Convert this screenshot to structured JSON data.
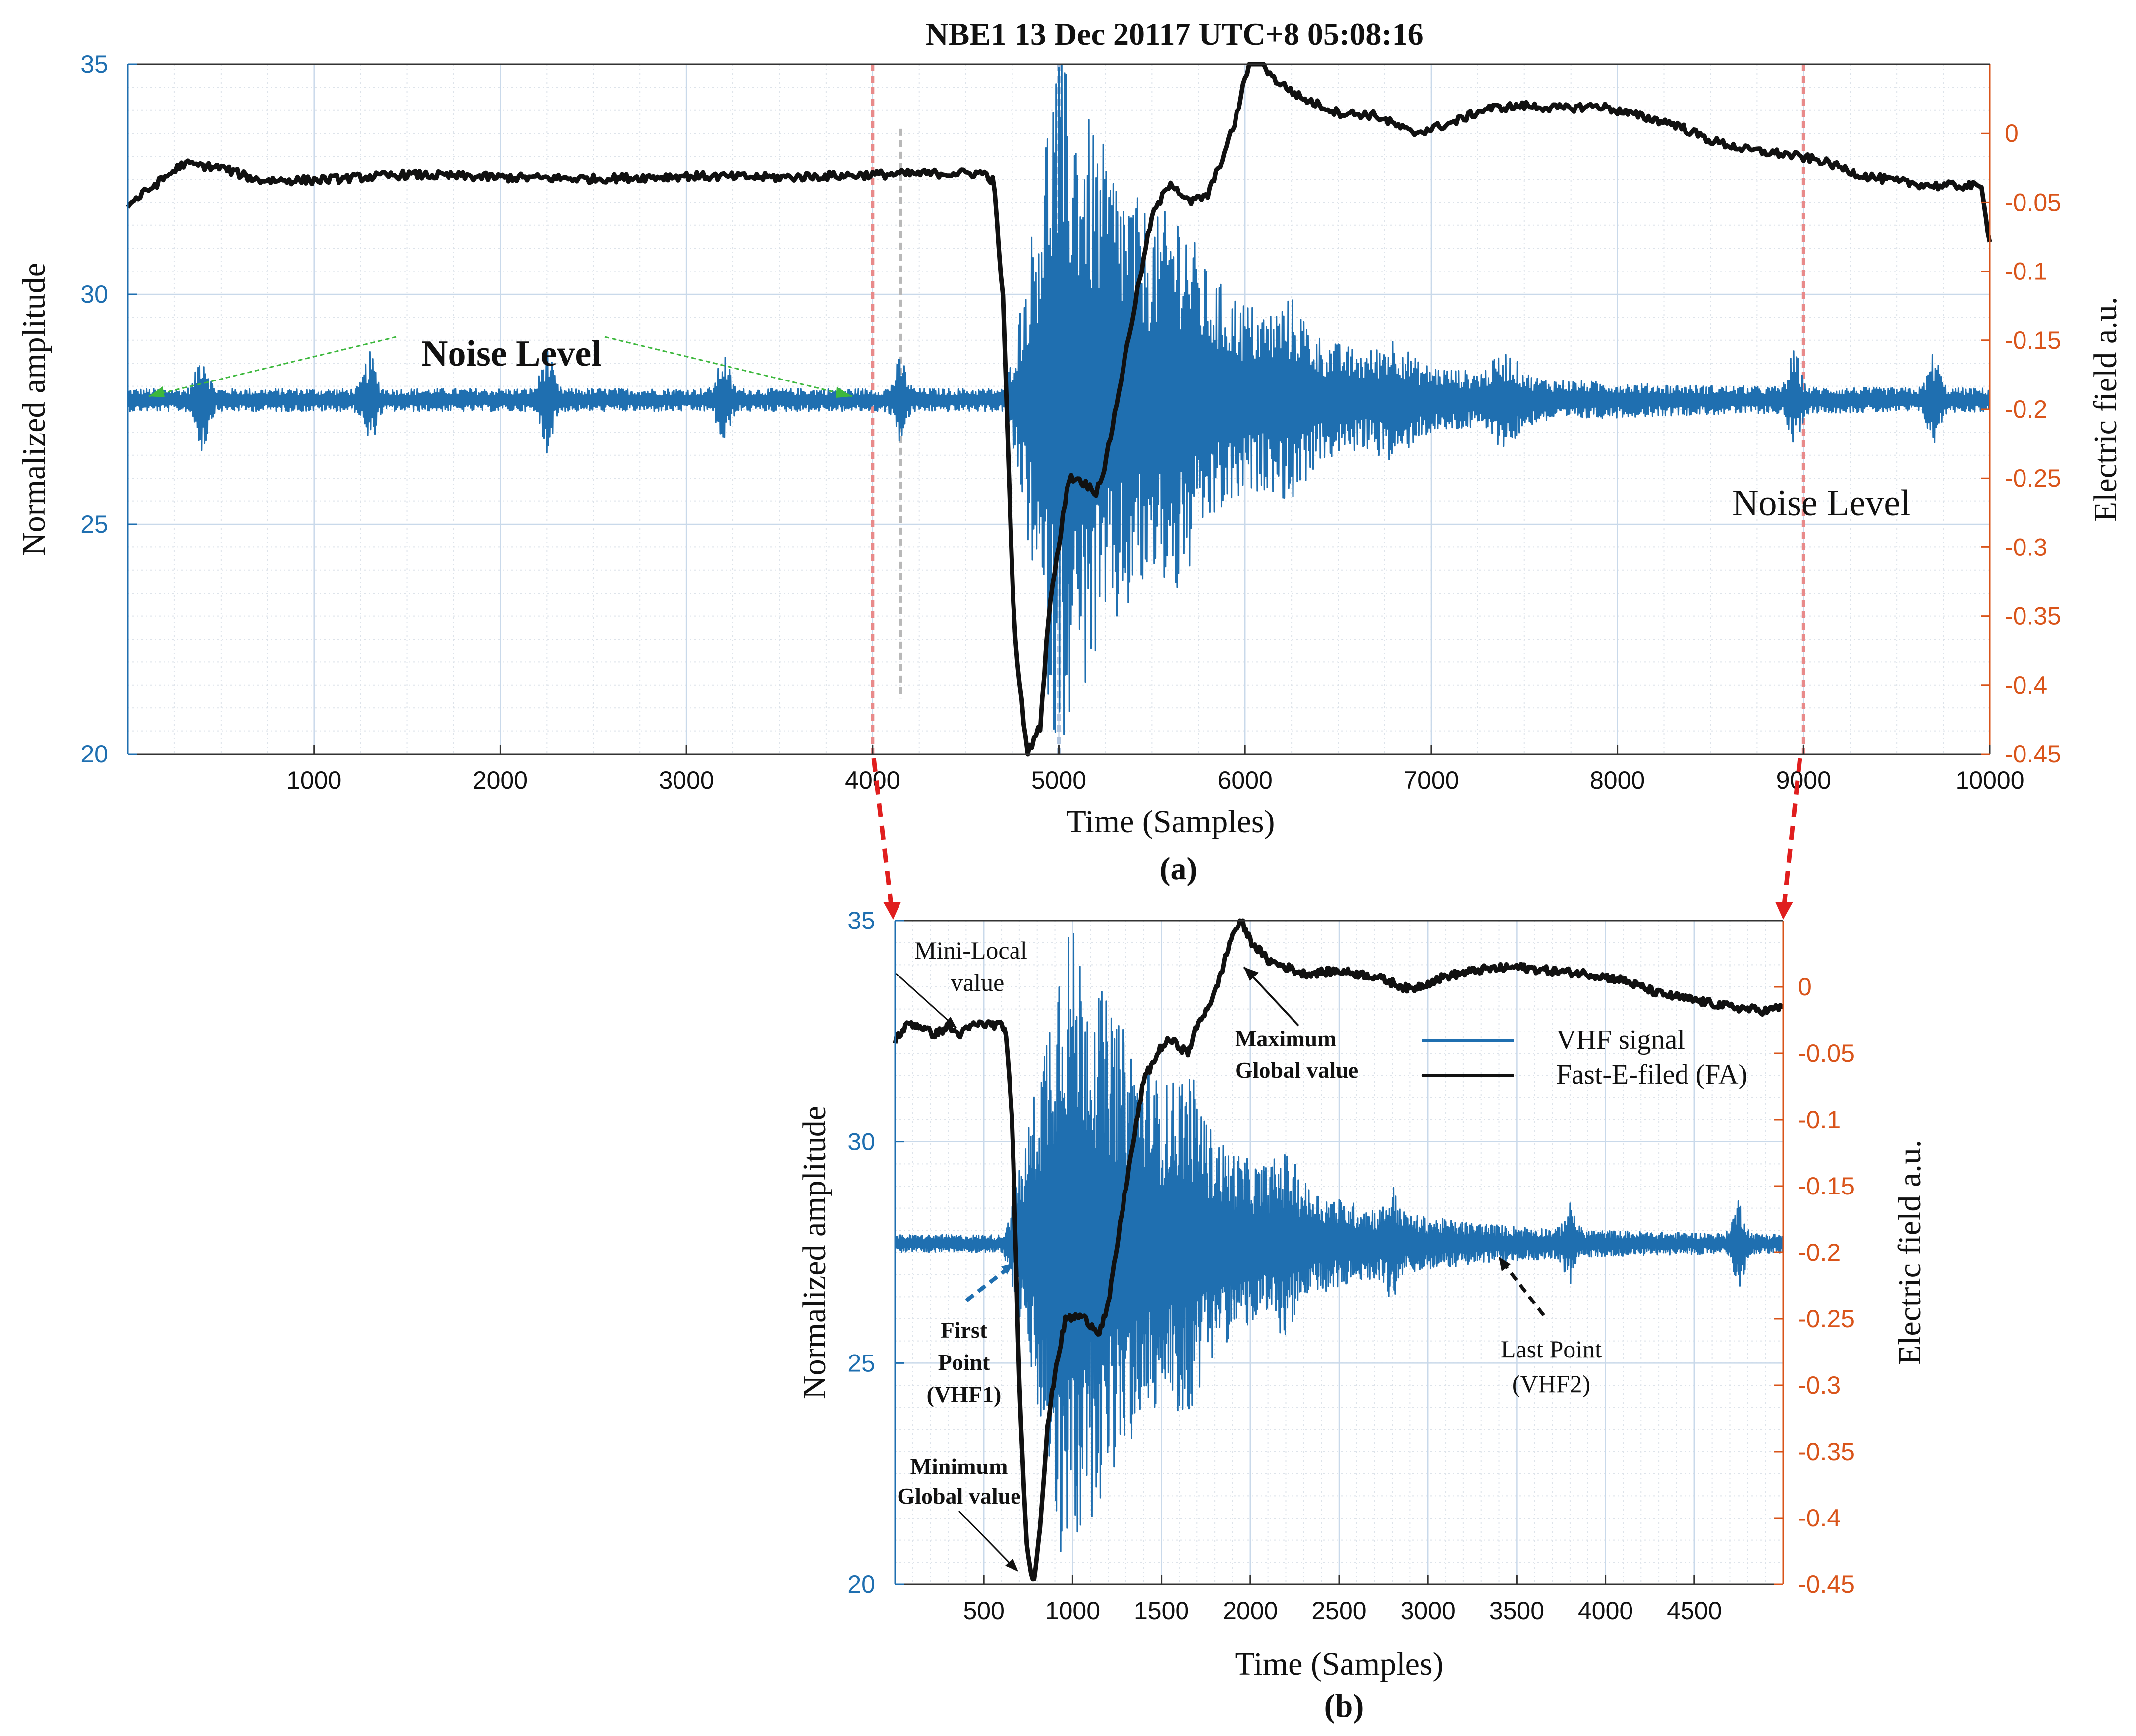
{
  "figure": {
    "title": "NBE1 13 Dec 20117  UTC+8 05:08:16"
  },
  "chart_data": [
    {
      "panel": "(a)",
      "type": "line",
      "title": "NBE1 13 Dec 20117  UTC+8 05:08:16",
      "xlabel": "Time (Samples)",
      "ylabel_left": "Normalized  amplitude",
      "ylabel_right": "Electric  field a.u.",
      "xlim": [
        0,
        10000
      ],
      "ylim_left": [
        20,
        35
      ],
      "ylim_right": [
        -0.45,
        0.05
      ],
      "xticks": [
        "1000",
        "2000",
        "3000",
        "4000",
        "5000",
        "6000",
        "7000",
        "8000",
        "9000",
        "10000"
      ],
      "yticks_left": [
        "35",
        "30",
        "25",
        "20"
      ],
      "yticks_right": [
        "0",
        "-0.05",
        "-0.1",
        "-0.15",
        "-0.2",
        "-0.25",
        "-0.3",
        "-0.35",
        "-0.4",
        "-0.45"
      ],
      "series": [
        {
          "name": "VHF signal",
          "color": "#1f6fb0",
          "axis": "left",
          "baseline": 27.7,
          "noise_amp": 0.25,
          "bursts": [
            [
              400,
              0.9
            ],
            [
              1300,
              0.8
            ],
            [
              2250,
              0.9
            ],
            [
              3200,
              0.8
            ],
            [
              4150,
              0.7
            ],
            [
              8950,
              0.8
            ],
            [
              9700,
              0.8
            ]
          ],
          "main_onset": 4700,
          "main_peak": 4980,
          "main_peak_amp": 7.5,
          "main_decay": 750,
          "late_bursts": [
            [
              5650,
              1.0
            ],
            [
              6250,
              0.6
            ],
            [
              6800,
              0.5
            ],
            [
              7400,
              0.5
            ]
          ]
        },
        {
          "name": "Fast-E-filed (FA)",
          "color": "#111111",
          "axis": "right",
          "points": [
            [
              0,
              -0.052
            ],
            [
              300,
              -0.022
            ],
            [
              500,
              -0.025
            ],
            [
              700,
              -0.034
            ],
            [
              1000,
              -0.034
            ],
            [
              1500,
              -0.03
            ],
            [
              2000,
              -0.032
            ],
            [
              2500,
              -0.033
            ],
            [
              3000,
              -0.031
            ],
            [
              3500,
              -0.032
            ],
            [
              4000,
              -0.03
            ],
            [
              4400,
              -0.029
            ],
            [
              4600,
              -0.029
            ],
            [
              4650,
              -0.035
            ],
            [
              4700,
              -0.12
            ],
            [
              4760,
              -0.36
            ],
            [
              4830,
              -0.45
            ],
            [
              4900,
              -0.43
            ],
            [
              4950,
              -0.34
            ],
            [
              5000,
              -0.3
            ],
            [
              5050,
              -0.25
            ],
            [
              5100,
              -0.25
            ],
            [
              5150,
              -0.255
            ],
            [
              5200,
              -0.26
            ],
            [
              5250,
              -0.24
            ],
            [
              5400,
              -0.13
            ],
            [
              5500,
              -0.06
            ],
            [
              5600,
              -0.035
            ],
            [
              5700,
              -0.05
            ],
            [
              5800,
              -0.045
            ],
            [
              5900,
              -0.01
            ],
            [
              5950,
              0.01
            ],
            [
              6000,
              0.04
            ],
            [
              6050,
              0.06
            ],
            [
              6150,
              0.04
            ],
            [
              6300,
              0.026
            ],
            [
              6500,
              0.015
            ],
            [
              6700,
              0.013
            ],
            [
              6900,
              0.0
            ],
            [
              7100,
              0.007
            ],
            [
              7300,
              0.018
            ],
            [
              7500,
              0.02
            ],
            [
              7700,
              0.018
            ],
            [
              7900,
              0.02
            ],
            [
              8100,
              0.013
            ],
            [
              8300,
              0.007
            ],
            [
              8500,
              -0.005
            ],
            [
              8700,
              -0.012
            ],
            [
              8900,
              -0.015
            ],
            [
              9100,
              -0.02
            ],
            [
              9300,
              -0.03
            ],
            [
              9500,
              -0.035
            ],
            [
              9700,
              -0.038
            ],
            [
              9900,
              -0.038
            ],
            [
              9960,
              -0.04
            ],
            [
              10000,
              -0.08
            ]
          ]
        }
      ],
      "vertical_markers": [
        {
          "x": 4000,
          "color": "#e88a8a"
        },
        {
          "x": 4150,
          "color": "#b8b8b8"
        },
        {
          "x": 5000,
          "color": "#b0c4de"
        },
        {
          "x": 9000,
          "color": "#e88a8a"
        }
      ],
      "annotations": [
        {
          "text": "Noise Level",
          "bold": true
        },
        {
          "text": "Noise Level",
          "bold": false
        }
      ]
    },
    {
      "panel": "(b)",
      "type": "line",
      "xlabel": "Time (Samples)",
      "ylabel_left": "Normalized  amplitude",
      "ylabel_right": "Electric  field a.u.",
      "xlim": [
        0,
        5000
      ],
      "ylim_left": [
        20,
        35
      ],
      "ylim_right": [
        -0.45,
        0.05
      ],
      "xticks": [
        "500",
        "1000",
        "1500",
        "2000",
        "2500",
        "3000",
        "3500",
        "4000",
        "4500"
      ],
      "yticks_left": [
        "35",
        "30",
        "25",
        "20"
      ],
      "yticks_right": [
        "0",
        "-0.05",
        "-0.1",
        "-0.15",
        "-0.2",
        "-0.25",
        "-0.3",
        "-0.35",
        "-0.4",
        "-0.45"
      ],
      "legend": [
        {
          "label": "VHF signal",
          "color": "#1f6fb0"
        },
        {
          "label": "Fast-E-filed (FA)",
          "color": "#111111"
        }
      ],
      "series": [
        {
          "name": "VHF signal",
          "color": "#1f6fb0",
          "axis": "left",
          "baseline": 27.7,
          "noise_amp": 0.2,
          "bursts": [
            [
              2800,
              0.6
            ],
            [
              3800,
              0.6
            ],
            [
              4750,
              0.8
            ]
          ],
          "main_onset": 600,
          "main_peak": 950,
          "main_peak_amp": 7.5,
          "main_decay": 700,
          "late_bursts": [
            [
              1650,
              1.0
            ],
            [
              2200,
              0.6
            ]
          ]
        },
        {
          "name": "Fast-E-filed (FA)",
          "color": "#111111",
          "axis": "right",
          "points": [
            [
              0,
              -0.04
            ],
            [
              80,
              -0.027
            ],
            [
              150,
              -0.03
            ],
            [
              220,
              -0.036
            ],
            [
              300,
              -0.03
            ],
            [
              360,
              -0.036
            ],
            [
              450,
              -0.028
            ],
            [
              550,
              -0.028
            ],
            [
              620,
              -0.03
            ],
            [
              660,
              -0.1
            ],
            [
              700,
              -0.3
            ],
            [
              740,
              -0.42
            ],
            [
              780,
              -0.45
            ],
            [
              820,
              -0.4
            ],
            [
              860,
              -0.33
            ],
            [
              900,
              -0.29
            ],
            [
              960,
              -0.25
            ],
            [
              1050,
              -0.248
            ],
            [
              1150,
              -0.26
            ],
            [
              1200,
              -0.24
            ],
            [
              1300,
              -0.15
            ],
            [
              1400,
              -0.07
            ],
            [
              1500,
              -0.045
            ],
            [
              1550,
              -0.04
            ],
            [
              1600,
              -0.045
            ],
            [
              1650,
              -0.05
            ],
            [
              1700,
              -0.03
            ],
            [
              1800,
              -0.005
            ],
            [
              1900,
              0.04
            ],
            [
              1950,
              0.05
            ],
            [
              2000,
              0.035
            ],
            [
              2100,
              0.02
            ],
            [
              2300,
              0.01
            ],
            [
              2500,
              0.012
            ],
            [
              2700,
              0.008
            ],
            [
              2900,
              -0.002
            ],
            [
              3100,
              0.008
            ],
            [
              3300,
              0.013
            ],
            [
              3500,
              0.015
            ],
            [
              3700,
              0.012
            ],
            [
              3900,
              0.01
            ],
            [
              4100,
              0.005
            ],
            [
              4300,
              -0.005
            ],
            [
              4500,
              -0.01
            ],
            [
              4700,
              -0.015
            ],
            [
              4900,
              -0.018
            ],
            [
              5000,
              -0.015
            ]
          ]
        }
      ],
      "annotations": [
        {
          "text": "Mini-Local",
          "bold": false
        },
        {
          "text": "value",
          "bold": false
        },
        {
          "text": "Maximum",
          "bold": true
        },
        {
          "text": "Global value",
          "bold": true
        },
        {
          "text": "First",
          "bold": true
        },
        {
          "text": "Point",
          "bold": true
        },
        {
          "text": "(VHF1)",
          "bold": true
        },
        {
          "text": "Minimum",
          "bold": true
        },
        {
          "text": "Global value",
          "bold": true
        },
        {
          "text": "Last Point",
          "bold": false
        },
        {
          "text": "(VHF2)",
          "bold": false
        }
      ]
    }
  ]
}
